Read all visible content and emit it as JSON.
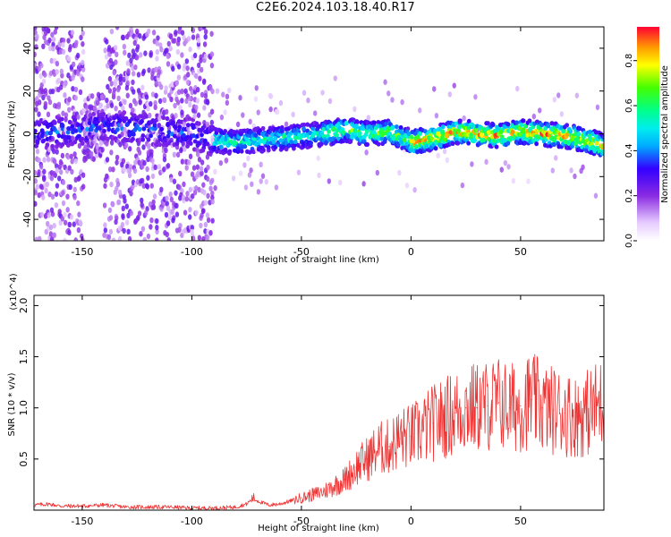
{
  "title": "C2E6.2024.103.18.40.R17",
  "chart_data": [
    {
      "type": "heatmap",
      "xlabel": "Height of straight line (km)",
      "ylabel": "Frequency (Hz)",
      "xlim": [
        -172,
        88
      ],
      "ylim": [
        -50,
        50
      ],
      "xticks": [
        -150,
        -100,
        -50,
        0,
        50
      ],
      "yticks": [
        -40,
        -20,
        0,
        20,
        40
      ],
      "colorbar": {
        "label": "Normalized spectral amplitude",
        "range": [
          0.0,
          0.95
        ],
        "ticks": [
          0.0,
          0.2,
          0.4,
          0.6,
          0.8
        ],
        "tick_labels": [
          "0.0",
          "0.2",
          "0.4",
          "0.6",
          "0.8"
        ],
        "colormap": "rainbow"
      },
      "ridge": {
        "x": [
          -172,
          -150,
          -140,
          -120,
          -100,
          -90,
          -80,
          -70,
          -60,
          -50,
          -40,
          -30,
          -20,
          -10,
          0,
          10,
          20,
          30,
          40,
          50,
          60,
          70,
          80,
          88
        ],
        "frequency": [
          0,
          2,
          4,
          2,
          0,
          -3,
          -4,
          -3,
          -2,
          -1,
          0,
          2,
          0,
          1,
          -4,
          -2,
          1,
          0,
          -1,
          1,
          0,
          -1,
          -3,
          -6
        ]
      }
    },
    {
      "type": "line",
      "xlabel": "Height of straight line (km)",
      "ylabel": "SNR (10 * v/v)",
      "y_multiplier": "(x10^4)",
      "xlim": [
        -172,
        88
      ],
      "ylim": [
        0,
        2.1
      ],
      "xticks": [
        -150,
        -100,
        -50,
        0,
        50
      ],
      "yticks": [
        0.5,
        1.0,
        1.5,
        2.0
      ],
      "ytick_labels": [
        "0.5",
        "1.0",
        "1.5",
        "2.0"
      ],
      "color": "#ee3333",
      "series": [
        {
          "x": [
            -172,
            -165,
            -160,
            -150,
            -140,
            -130,
            -120,
            -110,
            -100,
            -90,
            -80,
            -75,
            -72,
            -70,
            -65,
            -60,
            -55,
            -50,
            -45,
            -40,
            -35,
            -30,
            -25,
            -20,
            -15,
            -10,
            -5,
            0,
            5,
            10,
            15,
            20,
            25,
            30,
            35,
            40,
            45,
            50,
            55,
            60,
            65,
            70,
            75,
            80,
            85,
            88
          ],
          "values": [
            0.05,
            0.06,
            0.04,
            0.04,
            0.05,
            0.03,
            0.03,
            0.03,
            0.02,
            0.02,
            0.03,
            0.06,
            0.12,
            0.09,
            0.05,
            0.06,
            0.09,
            0.12,
            0.15,
            0.18,
            0.24,
            0.3,
            0.42,
            0.5,
            0.6,
            0.62,
            0.7,
            0.72,
            0.78,
            0.85,
            0.9,
            0.95,
            1.0,
            1.0,
            1.02,
            1.05,
            1.0,
            1.02,
            1.08,
            1.0,
            0.98,
            0.95,
            0.92,
            0.95,
            1.02,
            1.05
          ]
        }
      ]
    }
  ]
}
